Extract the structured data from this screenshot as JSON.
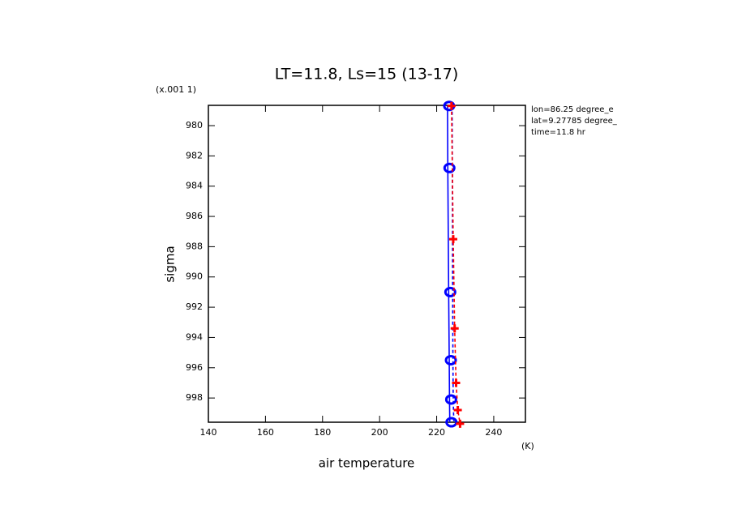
{
  "chart_data": {
    "type": "line",
    "title": "LT=11.8, Ls=15 (13-17)",
    "y_scale_label": "(x.001 1)",
    "ylabel": "sigma",
    "xlabel": "air temperature",
    "xunits": "(K)",
    "annotations": [
      "lon=86.25 degree_e",
      "lat=9.27785 degree_",
      "time=11.8 hr"
    ],
    "xlim": [
      140,
      251.1
    ],
    "ylim": [
      978.66,
      999.6
    ],
    "y_reversed": true,
    "xticks": [
      140,
      160,
      180,
      200,
      220,
      240
    ],
    "yticks": [
      980,
      982,
      984,
      986,
      988,
      990,
      992,
      994,
      996,
      998
    ],
    "series": [
      {
        "color": "#0000ff",
        "dash": false,
        "marker": "circle",
        "y": [
          978.7,
          982.8,
          991.0,
          995.5,
          998.1,
          999.6
        ],
        "values": [
          223.8,
          223.9,
          224.2,
          224.4,
          224.5,
          224.6
        ]
      },
      {
        "color": "#0000ff",
        "dash": true,
        "marker": "none",
        "y": [
          978.7,
          982.8,
          991.0,
          995.5,
          998.1,
          999.6
        ],
        "values": [
          225.4,
          225.5,
          225.6,
          225.7,
          225.8,
          226.0
        ]
      },
      {
        "color": "#ff0000",
        "dash": true,
        "marker": "cross",
        "y": [
          978.7,
          987.5,
          993.4,
          997.0,
          998.8,
          999.7
        ],
        "values": [
          225.2,
          225.8,
          226.3,
          226.8,
          227.4,
          228.2
        ]
      }
    ]
  }
}
